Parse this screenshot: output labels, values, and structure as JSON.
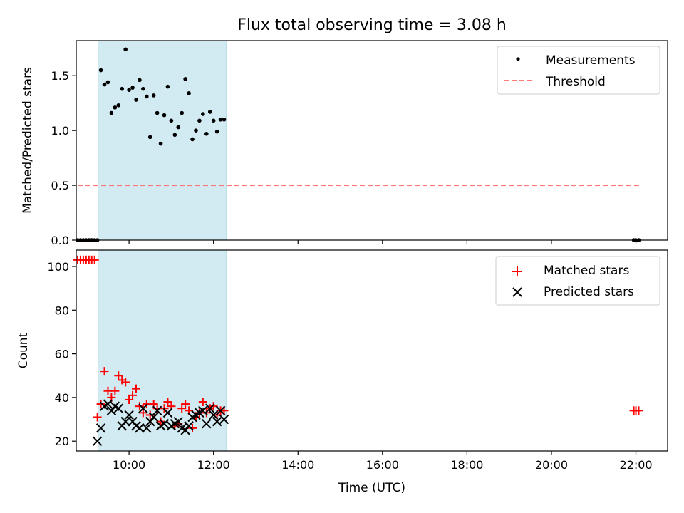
{
  "chart_data": [
    {
      "type": "scatter",
      "title": "Flux total observing time = 3.08 h",
      "xlabel": "",
      "ylabel": "Matched/Predicted stars",
      "xlim": [
        "08:45",
        "22:45"
      ],
      "ylim": [
        0,
        1.82
      ],
      "yticks": [
        0.0,
        0.5,
        1.0,
        1.5
      ],
      "ytick_labels": [
        "0.0",
        "0.5",
        "1.0",
        "1.5"
      ],
      "xticks": [
        "10:00",
        "12:00",
        "14:00",
        "16:00",
        "18:00",
        "20:00",
        "22:00"
      ],
      "grid": false,
      "legend_position": "top-right",
      "shaded_span": {
        "x_start": "09:16",
        "x_end": "12:18",
        "color": "#add8e6"
      },
      "series": [
        {
          "name": "Measurements",
          "marker": "dot",
          "color": "#000000",
          "x": [
            "08:47",
            "08:51",
            "08:55",
            "08:59",
            "09:03",
            "09:07",
            "09:11",
            "09:15",
            "09:20",
            "09:25",
            "09:30",
            "09:35",
            "09:40",
            "09:45",
            "09:50",
            "09:55",
            "10:00",
            "10:05",
            "10:10",
            "10:15",
            "10:20",
            "10:25",
            "10:30",
            "10:35",
            "10:40",
            "10:45",
            "10:50",
            "10:55",
            "11:00",
            "11:05",
            "11:10",
            "11:15",
            "11:20",
            "11:25",
            "11:30",
            "11:35",
            "11:40",
            "11:45",
            "11:50",
            "11:55",
            "12:00",
            "12:05",
            "12:10",
            "12:15",
            "21:57",
            "22:00",
            "22:04"
          ],
          "y": [
            0,
            0,
            0,
            0,
            0,
            0,
            0,
            0,
            1.55,
            1.42,
            1.44,
            1.16,
            1.21,
            1.23,
            1.38,
            1.74,
            1.37,
            1.39,
            1.28,
            1.46,
            1.38,
            1.31,
            0.94,
            1.32,
            1.16,
            0.88,
            1.14,
            1.4,
            1.09,
            0.96,
            1.03,
            1.16,
            1.47,
            1.34,
            0.92,
            1.0,
            1.09,
            1.15,
            0.97,
            1.17,
            1.09,
            0.99,
            1.1,
            1.1,
            0,
            0,
            0
          ]
        },
        {
          "name": "Threshold",
          "style": "dashed",
          "color": "#ff7a7a",
          "x": [
            "08:47",
            "22:05"
          ],
          "y": [
            0.5,
            0.5
          ]
        }
      ]
    },
    {
      "type": "scatter",
      "title": "",
      "xlabel": "Time (UTC)",
      "ylabel": "Count",
      "xlim": [
        "08:45",
        "22:45"
      ],
      "ylim": [
        15.5,
        107.5
      ],
      "yticks": [
        20,
        40,
        60,
        80,
        100
      ],
      "ytick_labels": [
        "20",
        "40",
        "60",
        "80",
        "100"
      ],
      "xticks": [
        "10:00",
        "12:00",
        "14:00",
        "16:00",
        "18:00",
        "20:00",
        "22:00"
      ],
      "xtick_labels": [
        "10:00",
        "12:00",
        "14:00",
        "16:00",
        "18:00",
        "20:00",
        "22:00"
      ],
      "grid": false,
      "legend_position": "top-right",
      "shaded_span": {
        "x_start": "09:16",
        "x_end": "12:18",
        "color": "#add8e6"
      },
      "series": [
        {
          "name": "Matched stars",
          "marker": "plus",
          "color": "#ff0000",
          "x": [
            "08:47",
            "08:51",
            "08:55",
            "08:59",
            "09:03",
            "09:07",
            "09:11",
            "09:15",
            "09:20",
            "09:25",
            "09:30",
            "09:35",
            "09:40",
            "09:45",
            "09:50",
            "09:55",
            "10:00",
            "10:05",
            "10:10",
            "10:15",
            "10:20",
            "10:25",
            "10:30",
            "10:35",
            "10:40",
            "10:45",
            "10:50",
            "10:55",
            "11:00",
            "11:05",
            "11:10",
            "11:15",
            "11:20",
            "11:25",
            "11:30",
            "11:35",
            "11:40",
            "11:45",
            "11:50",
            "11:55",
            "12:00",
            "12:05",
            "12:10",
            "12:15",
            "21:57",
            "22:00",
            "22:04"
          ],
          "y": [
            103,
            103,
            103,
            103,
            103,
            103,
            103,
            31,
            37,
            52,
            43,
            40,
            43,
            50,
            48,
            47,
            39,
            41,
            44,
            36,
            33,
            37,
            32,
            37,
            35,
            29,
            35,
            38,
            36,
            27,
            28,
            35,
            37,
            34,
            26,
            31,
            33,
            38,
            33,
            35,
            36,
            32,
            34,
            34,
            34,
            34,
            34
          ]
        },
        {
          "name": "Predicted stars",
          "marker": "x",
          "color": "#000000",
          "x": [
            "09:15",
            "09:20",
            "09:25",
            "09:30",
            "09:35",
            "09:40",
            "09:45",
            "09:50",
            "09:55",
            "10:00",
            "10:05",
            "10:10",
            "10:15",
            "10:20",
            "10:25",
            "10:30",
            "10:35",
            "10:40",
            "10:45",
            "10:50",
            "10:55",
            "11:00",
            "11:05",
            "11:10",
            "11:15",
            "11:20",
            "11:25",
            "11:30",
            "11:35",
            "11:40",
            "11:45",
            "11:50",
            "11:55",
            "12:00",
            "12:05",
            "12:10",
            "12:15"
          ],
          "y": [
            20,
            26,
            36,
            37,
            34,
            36,
            35,
            27,
            29,
            32,
            29,
            27,
            26,
            35,
            26,
            29,
            31,
            34,
            27,
            28,
            33,
            27,
            28,
            29,
            26,
            25,
            27,
            31,
            32,
            33,
            34,
            28,
            35,
            32,
            29,
            34,
            30
          ]
        }
      ]
    }
  ]
}
